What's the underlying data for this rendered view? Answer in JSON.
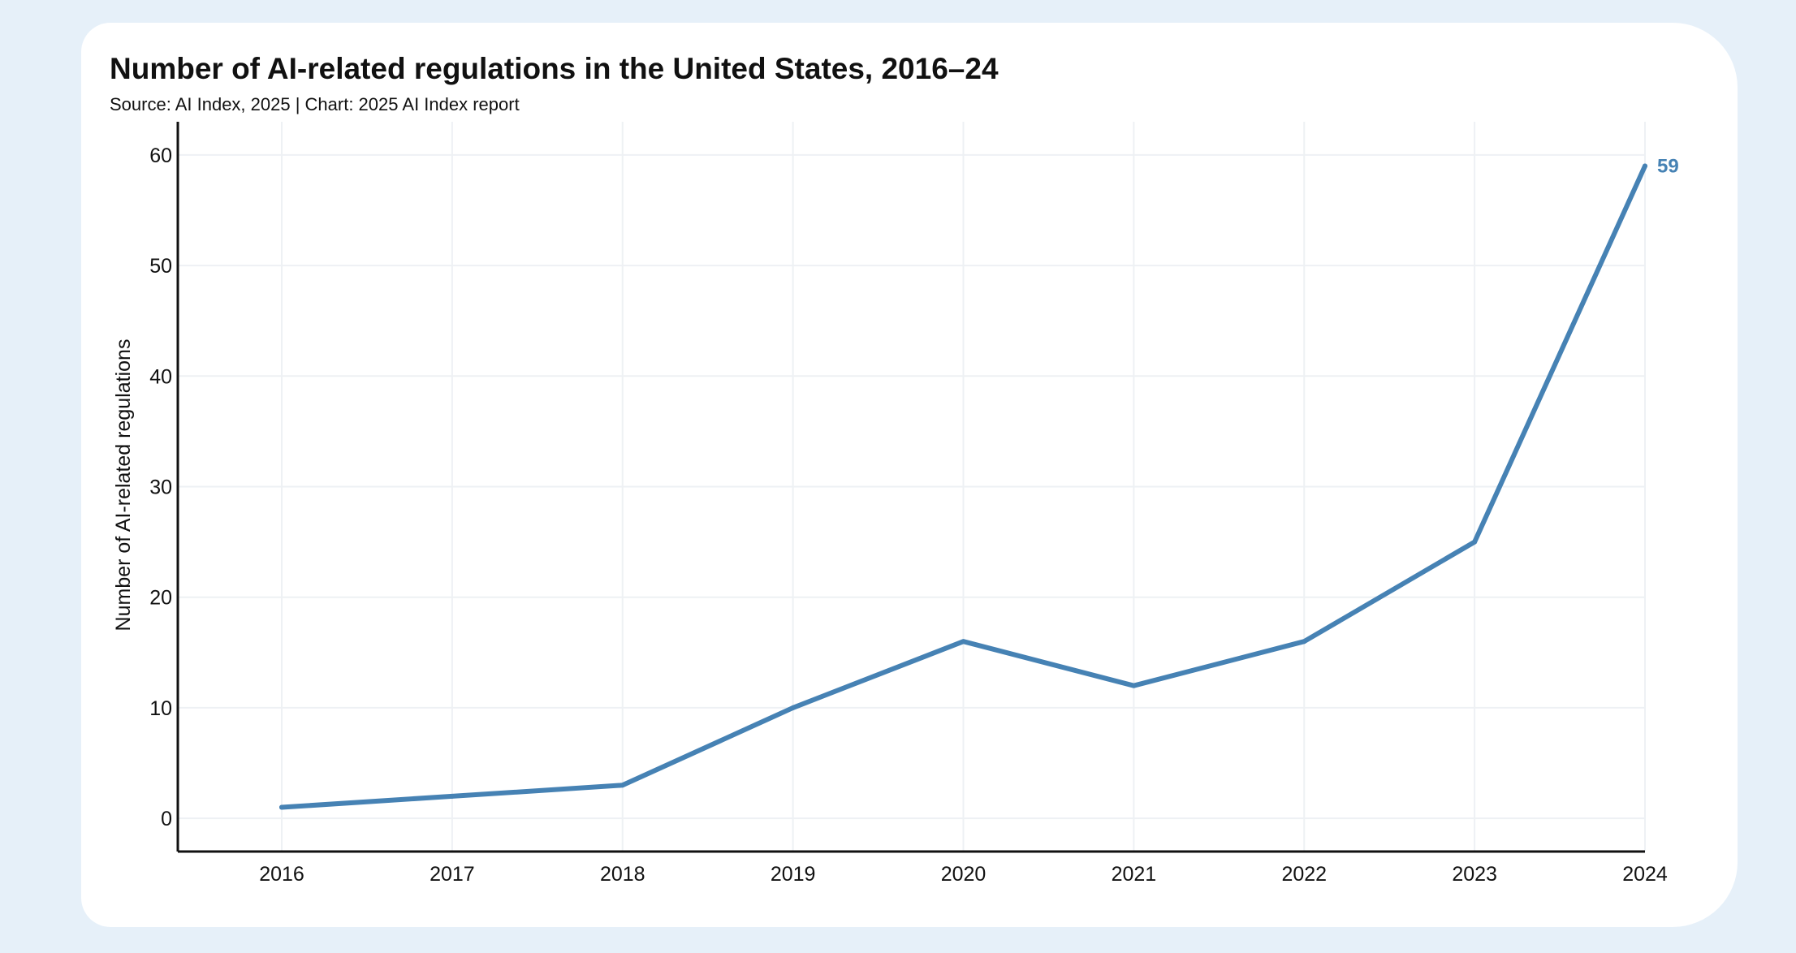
{
  "chart_data": {
    "type": "line",
    "title": "Number of AI-related regulations in the United States, 2016–24",
    "subtitle": "Source: AI Index, 2025 | Chart: 2025 AI Index report",
    "xlabel": "",
    "ylabel": "Number of AI-related regulations",
    "categories": [
      "2016",
      "2017",
      "2018",
      "2019",
      "2020",
      "2021",
      "2022",
      "2023",
      "2024"
    ],
    "series": [
      {
        "values": [
          1,
          2,
          3,
          10,
          16,
          12,
          16,
          25,
          59
        ]
      }
    ],
    "ylim": [
      -3,
      63
    ],
    "yticks": [
      "0",
      "10",
      "20",
      "30",
      "40",
      "50",
      "60"
    ],
    "end_label": "59",
    "grid": true,
    "line_color": "#4682b4"
  }
}
